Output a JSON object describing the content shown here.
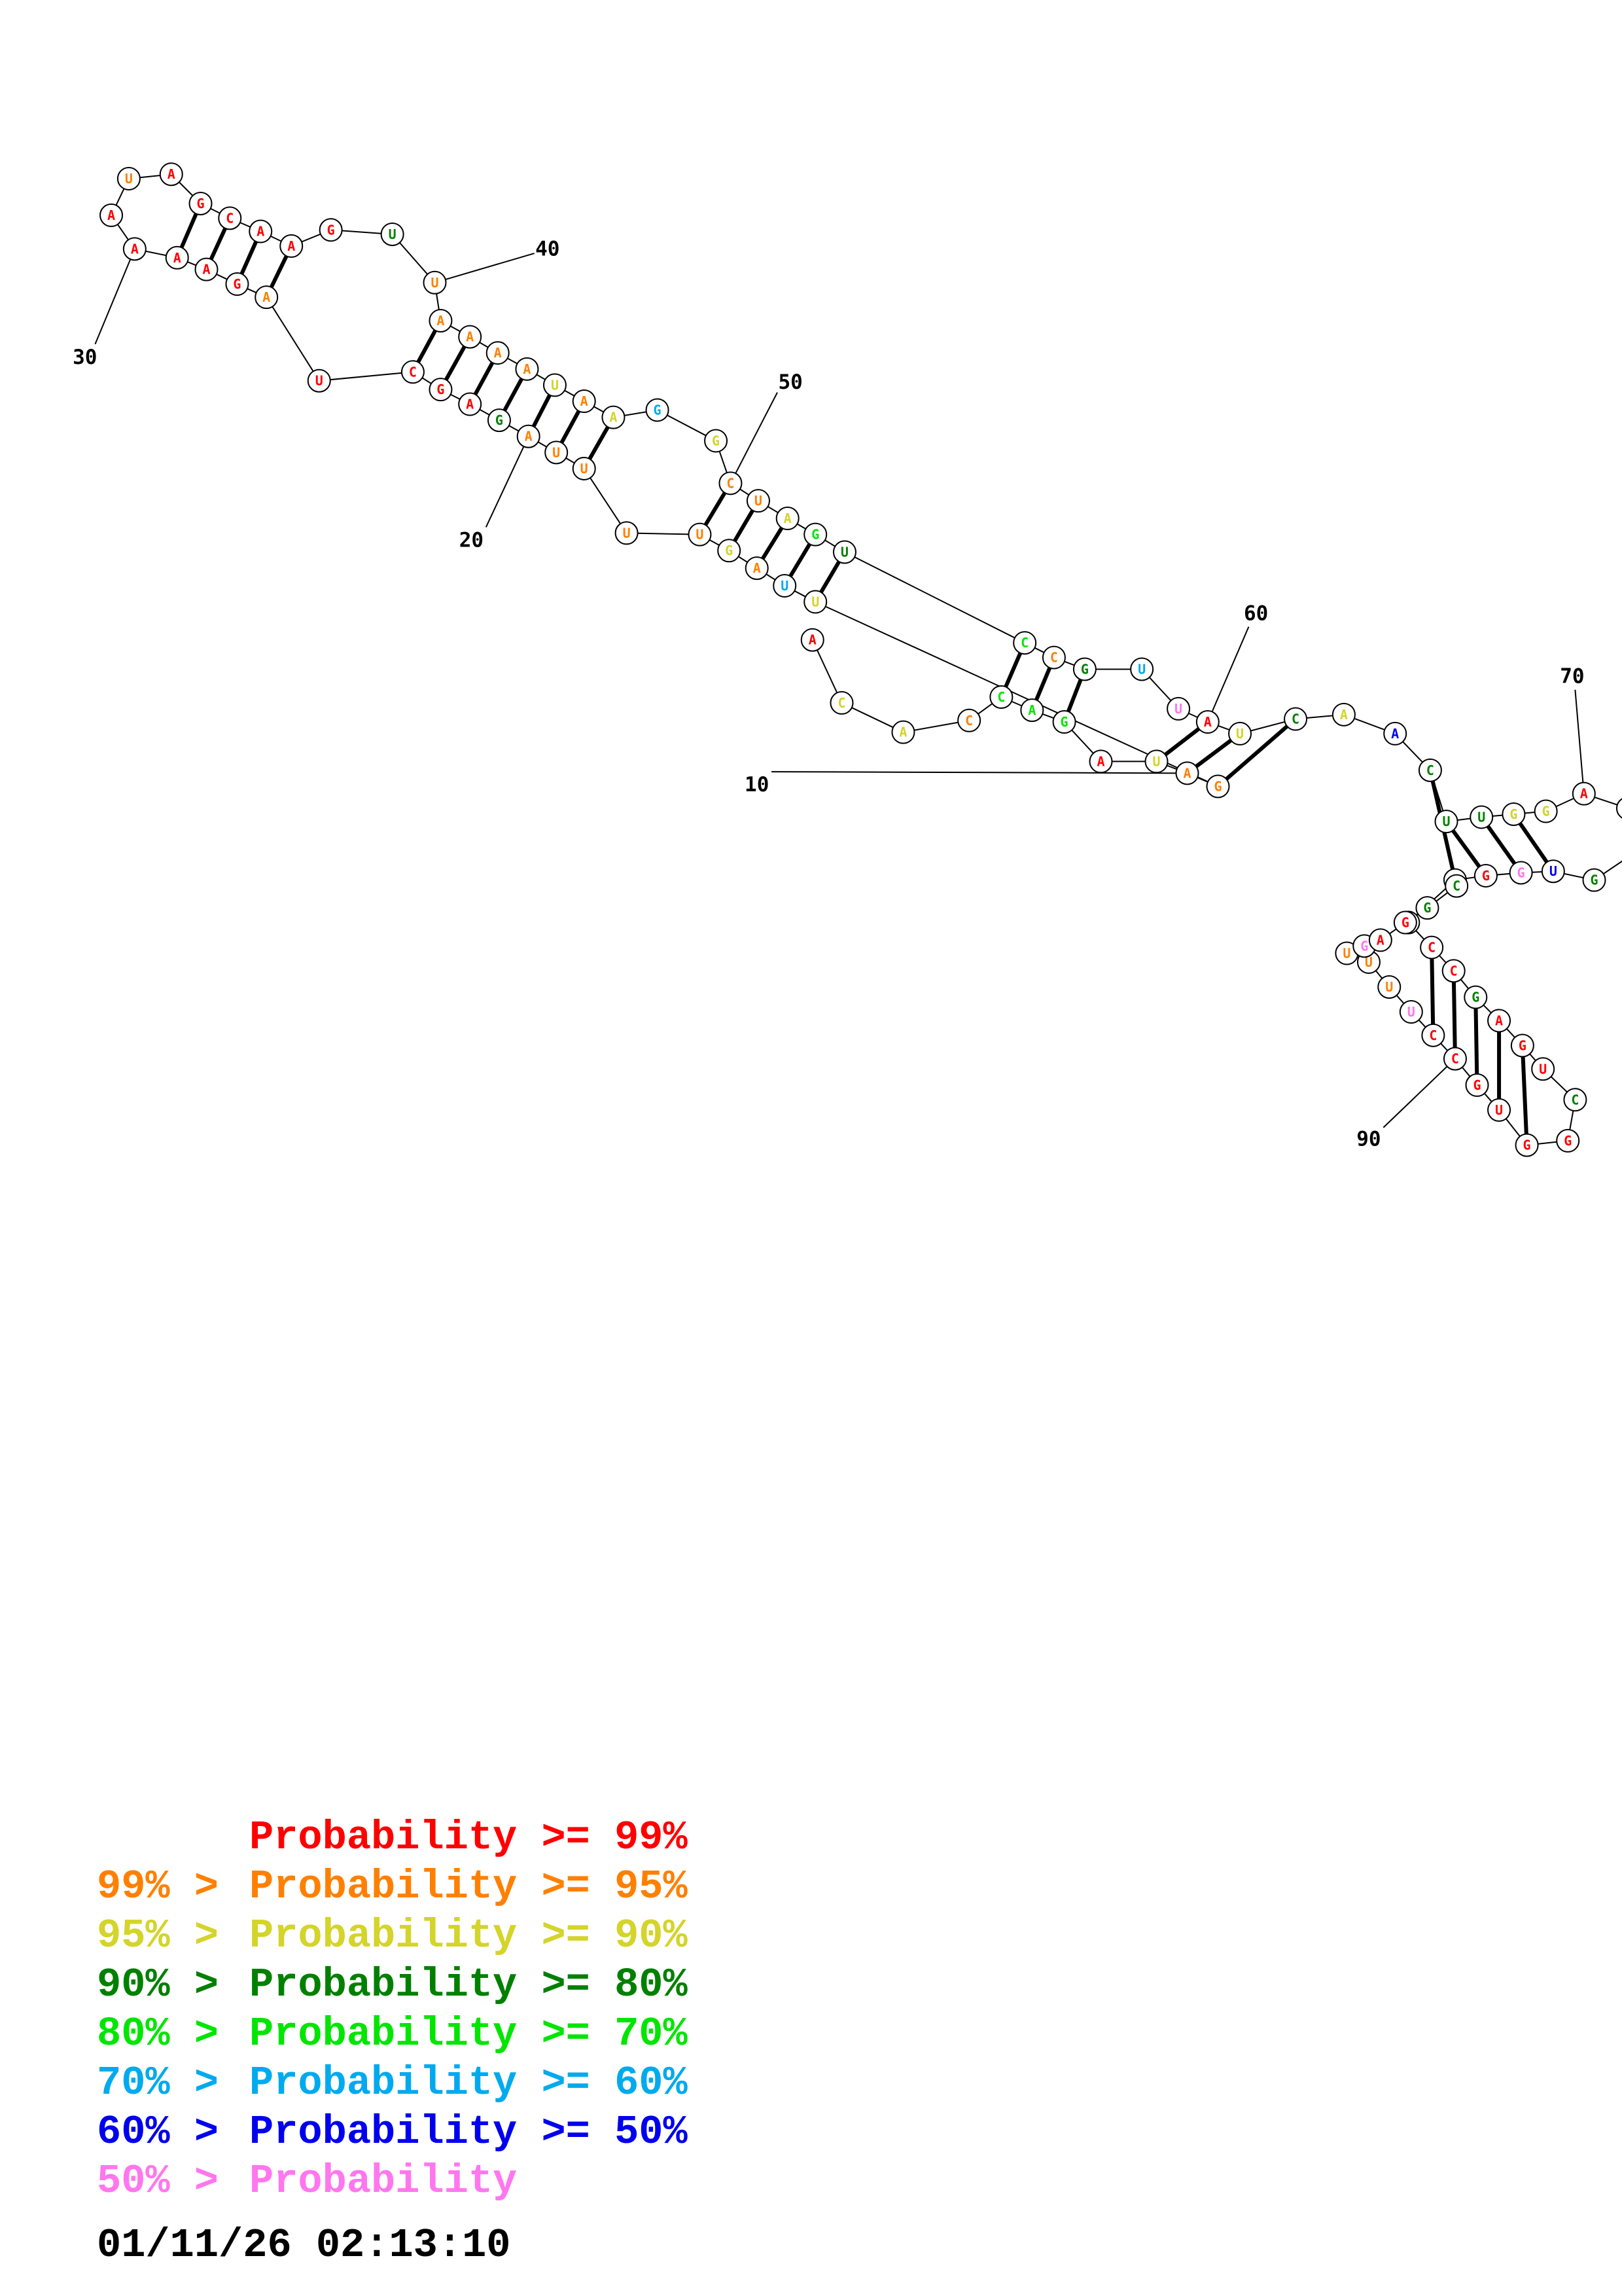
{
  "colors": {
    "p99": "#ff0000",
    "p95": "#ff8000",
    "p90": "#d4d42a",
    "p80": "#008000",
    "p70": "#00e600",
    "p60": "#00aaee",
    "p50": "#0000ee",
    "plt50": "#ff77ee"
  },
  "position_labels": [
    "10",
    "20",
    "30",
    "40",
    "50",
    "60",
    "70",
    "90"
  ],
  "legend": [
    {
      "prefix": "",
      "text": "Probability >= 99%",
      "color": "#ff0000"
    },
    {
      "prefix": "99% > ",
      "text": "Probability >= 95%",
      "color": "#ff8000"
    },
    {
      "prefix": "95% > ",
      "text": "Probability >= 90%",
      "color": "#d4d42a"
    },
    {
      "prefix": "90% > ",
      "text": "Probability >= 80%",
      "color": "#008000"
    },
    {
      "prefix": "80% > ",
      "text": "Probability >= 70%",
      "color": "#00e600"
    },
    {
      "prefix": "70% > ",
      "text": "Probability >= 60%",
      "color": "#00aaee"
    },
    {
      "prefix": "60% > ",
      "text": "Probability >= 50%",
      "color": "#0000ee"
    },
    {
      "prefix": "50% > ",
      "text": "Probability",
      "color": "#ff77ee"
    }
  ],
  "timestamp": "01/11/26 02:13:10",
  "nucleotides": [
    {
      "b": "A",
      "c": "p99"
    },
    {
      "b": "C",
      "c": "p90"
    },
    {
      "b": "A",
      "c": "p90"
    },
    {
      "b": "C",
      "c": "p95"
    },
    {
      "b": "C",
      "c": "p70"
    },
    {
      "b": "A",
      "c": "p70"
    },
    {
      "b": "G",
      "c": "p70"
    },
    {
      "b": "A",
      "c": "p99"
    },
    {
      "b": "U",
      "c": "p90"
    },
    {
      "b": "A",
      "c": "p95"
    },
    {
      "b": "G",
      "c": "p95"
    },
    {
      "b": "U",
      "c": "p90"
    },
    {
      "b": "U",
      "c": "p60"
    },
    {
      "b": "A",
      "c": "p95"
    },
    {
      "b": "G",
      "c": "p90"
    },
    {
      "b": "U",
      "c": "p95"
    },
    {
      "b": "U",
      "c": "p95"
    },
    {
      "b": "U",
      "c": "p95"
    },
    {
      "b": "U",
      "c": "p95"
    },
    {
      "b": "A",
      "c": "p95"
    },
    {
      "b": "G",
      "c": "p80"
    },
    {
      "b": "A",
      "c": "p99"
    },
    {
      "b": "G",
      "c": "p99"
    },
    {
      "b": "C",
      "c": "p99"
    },
    {
      "b": "U",
      "c": "p99"
    },
    {
      "b": "A",
      "c": "p95"
    },
    {
      "b": "G",
      "c": "p99"
    },
    {
      "b": "A",
      "c": "p99"
    },
    {
      "b": "A",
      "c": "p99"
    },
    {
      "b": "A",
      "c": "p99"
    },
    {
      "b": "A",
      "c": "p99"
    },
    {
      "b": "U",
      "c": "p95"
    },
    {
      "b": "A",
      "c": "p99"
    },
    {
      "b": "G",
      "c": "p99"
    },
    {
      "b": "C",
      "c": "p99"
    },
    {
      "b": "A",
      "c": "p99"
    },
    {
      "b": "A",
      "c": "p99"
    },
    {
      "b": "G",
      "c": "p99"
    },
    {
      "b": "U",
      "c": "p80"
    },
    {
      "b": "U",
      "c": "p95"
    },
    {
      "b": "A",
      "c": "p95"
    },
    {
      "b": "A",
      "c": "p95"
    },
    {
      "b": "A",
      "c": "p95"
    },
    {
      "b": "A",
      "c": "p95"
    },
    {
      "b": "U",
      "c": "p90"
    },
    {
      "b": "A",
      "c": "p95"
    },
    {
      "b": "A",
      "c": "p90"
    },
    {
      "b": "G",
      "c": "p60"
    },
    {
      "b": "G",
      "c": "p90"
    },
    {
      "b": "C",
      "c": "p95"
    },
    {
      "b": "U",
      "c": "p95"
    },
    {
      "b": "A",
      "c": "p90"
    },
    {
      "b": "G",
      "c": "p70"
    },
    {
      "b": "U",
      "c": "p80"
    },
    {
      "b": "C",
      "c": "p70"
    },
    {
      "b": "C",
      "c": "p95"
    },
    {
      "b": "G",
      "c": "p80"
    },
    {
      "b": "U",
      "c": "p60"
    },
    {
      "b": "U",
      "c": "plt50"
    },
    {
      "b": "A",
      "c": "p99"
    },
    {
      "b": "U",
      "c": "p90"
    },
    {
      "b": "C",
      "c": "p80"
    },
    {
      "b": "A",
      "c": "p90"
    },
    {
      "b": "A",
      "c": "p50"
    },
    {
      "b": "C",
      "c": "p80"
    },
    {
      "b": "U",
      "c": "p80"
    },
    {
      "b": "U",
      "c": "p80"
    },
    {
      "b": "G",
      "c": "p90"
    },
    {
      "b": "G",
      "c": "p90"
    },
    {
      "b": "A",
      "c": "p99"
    },
    {
      "b": "A",
      "c": "p80"
    },
    {
      "b": "A",
      "c": "p80"
    },
    {
      "b": "G",
      "c": "p80"
    },
    {
      "b": "U",
      "c": "p50"
    },
    {
      "b": "G",
      "c": "plt50"
    },
    {
      "b": "G",
      "c": "p99"
    },
    {
      "b": "C",
      "c": "p99"
    },
    {
      "b": "A",
      "c": "p99"
    },
    {
      "b": "C",
      "c": "p99"
    },
    {
      "b": "C",
      "c": "p99"
    },
    {
      "b": "G",
      "c": "p80"
    },
    {
      "b": "A",
      "c": "p99"
    },
    {
      "b": "G",
      "c": "p99"
    },
    {
      "b": "U",
      "c": "p99"
    },
    {
      "b": "C",
      "c": "p80"
    },
    {
      "b": "G",
      "c": "p99"
    },
    {
      "b": "G",
      "c": "p99"
    },
    {
      "b": "U",
      "c": "p99"
    },
    {
      "b": "G",
      "c": "p99"
    },
    {
      "b": "C",
      "c": "p99"
    },
    {
      "b": "C",
      "c": "p99"
    },
    {
      "b": "U",
      "c": "plt50"
    },
    {
      "b": "U",
      "c": "p95"
    },
    {
      "b": "U",
      "c": "p95"
    },
    {
      "b": "U",
      "c": "p95"
    },
    {
      "b": "G",
      "c": "plt50"
    },
    {
      "b": "A",
      "c": "p99"
    },
    {
      "b": "G",
      "c": "p99"
    },
    {
      "b": "G",
      "c": "p80"
    },
    {
      "b": "C",
      "c": "p80"
    },
    {
      "b": "G",
      "c": "p99"
    },
    {
      "b": "U",
      "c": "p99"
    },
    {
      "b": "A",
      "c": "p99"
    },
    {
      "b": "C",
      "c": "p99"
    },
    {
      "b": "G",
      "c": "p90"
    },
    {
      "b": "A",
      "c": "p99"
    },
    {
      "b": "A",
      "c": "p80"
    },
    {
      "b": "A",
      "c": "p80"
    },
    {
      "b": "G",
      "c": "p80"
    }
  ]
}
